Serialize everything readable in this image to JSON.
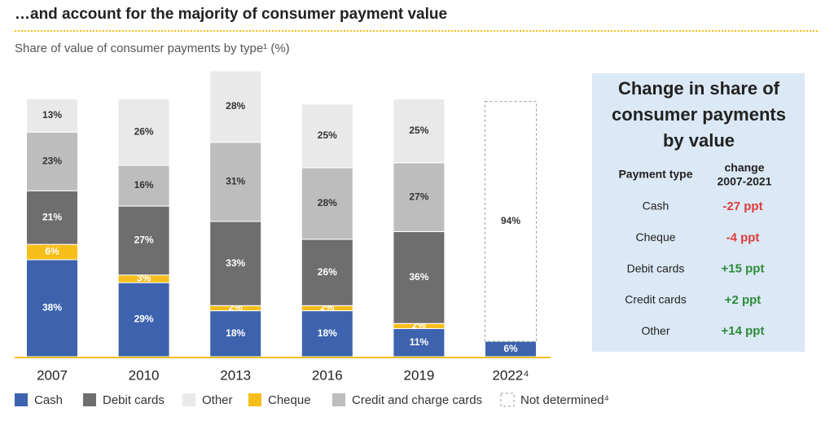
{
  "chart_data": {
    "type": "stacked-bar",
    "title": "…and account for the majority of consumer payment value",
    "subtitle": "Share of value of consumer payments by type¹ (%)",
    "categories": [
      "2007",
      "2010",
      "2013",
      "2016",
      "2019",
      "2022⁴"
    ],
    "series": [
      {
        "name": "Cash",
        "color": "#3d63ae",
        "values": [
          38,
          29,
          18,
          18,
          11,
          6
        ],
        "value_labels": [
          "38%",
          "29%",
          "18%",
          "18%",
          "11%",
          "6%"
        ]
      },
      {
        "name": "Cheque",
        "color": "#f6be1a",
        "values": [
          6,
          3,
          2,
          2,
          2,
          null
        ],
        "value_labels": [
          "6%",
          "3%",
          "2%",
          "2%",
          "2%",
          null
        ]
      },
      {
        "name": "Debit cards",
        "color": "#6e6e6e",
        "values": [
          21,
          27,
          33,
          26,
          36,
          null
        ],
        "value_labels": [
          "21%",
          "27%",
          "33%",
          "26%",
          "36%",
          null
        ]
      },
      {
        "name": "Credit and charge cards",
        "color": "#bdbdbd",
        "values": [
          23,
          16,
          31,
          28,
          27,
          null
        ],
        "value_labels": [
          "23%",
          "16%",
          "31%",
          "28%",
          "27%",
          null
        ]
      },
      {
        "name": "Other",
        "color": "#e9e9e9",
        "values": [
          13,
          26,
          28,
          25,
          25,
          null
        ],
        "value_labels": [
          "13%",
          "26%",
          "28%",
          "25%",
          "25%",
          null
        ]
      },
      {
        "name": "Not determined⁴",
        "color": "#ffffff",
        "values": [
          null,
          null,
          null,
          null,
          null,
          94
        ],
        "value_labels": [
          null,
          null,
          null,
          null,
          null,
          "94%"
        ]
      }
    ]
  },
  "table": {
    "title": [
      "Change in share of",
      "consumer payments",
      "by value"
    ],
    "header": [
      "Payment type",
      [
        "change",
        "2007-2021"
      ]
    ],
    "rows": [
      [
        "Cash",
        "-27 ppt"
      ],
      [
        "Cheque",
        "-4 ppt"
      ],
      [
        "Debit cards",
        "+15 ppt"
      ],
      [
        "Credit cards",
        "+2 ppt"
      ],
      [
        "Other",
        "+14 ppt"
      ]
    ]
  }
}
